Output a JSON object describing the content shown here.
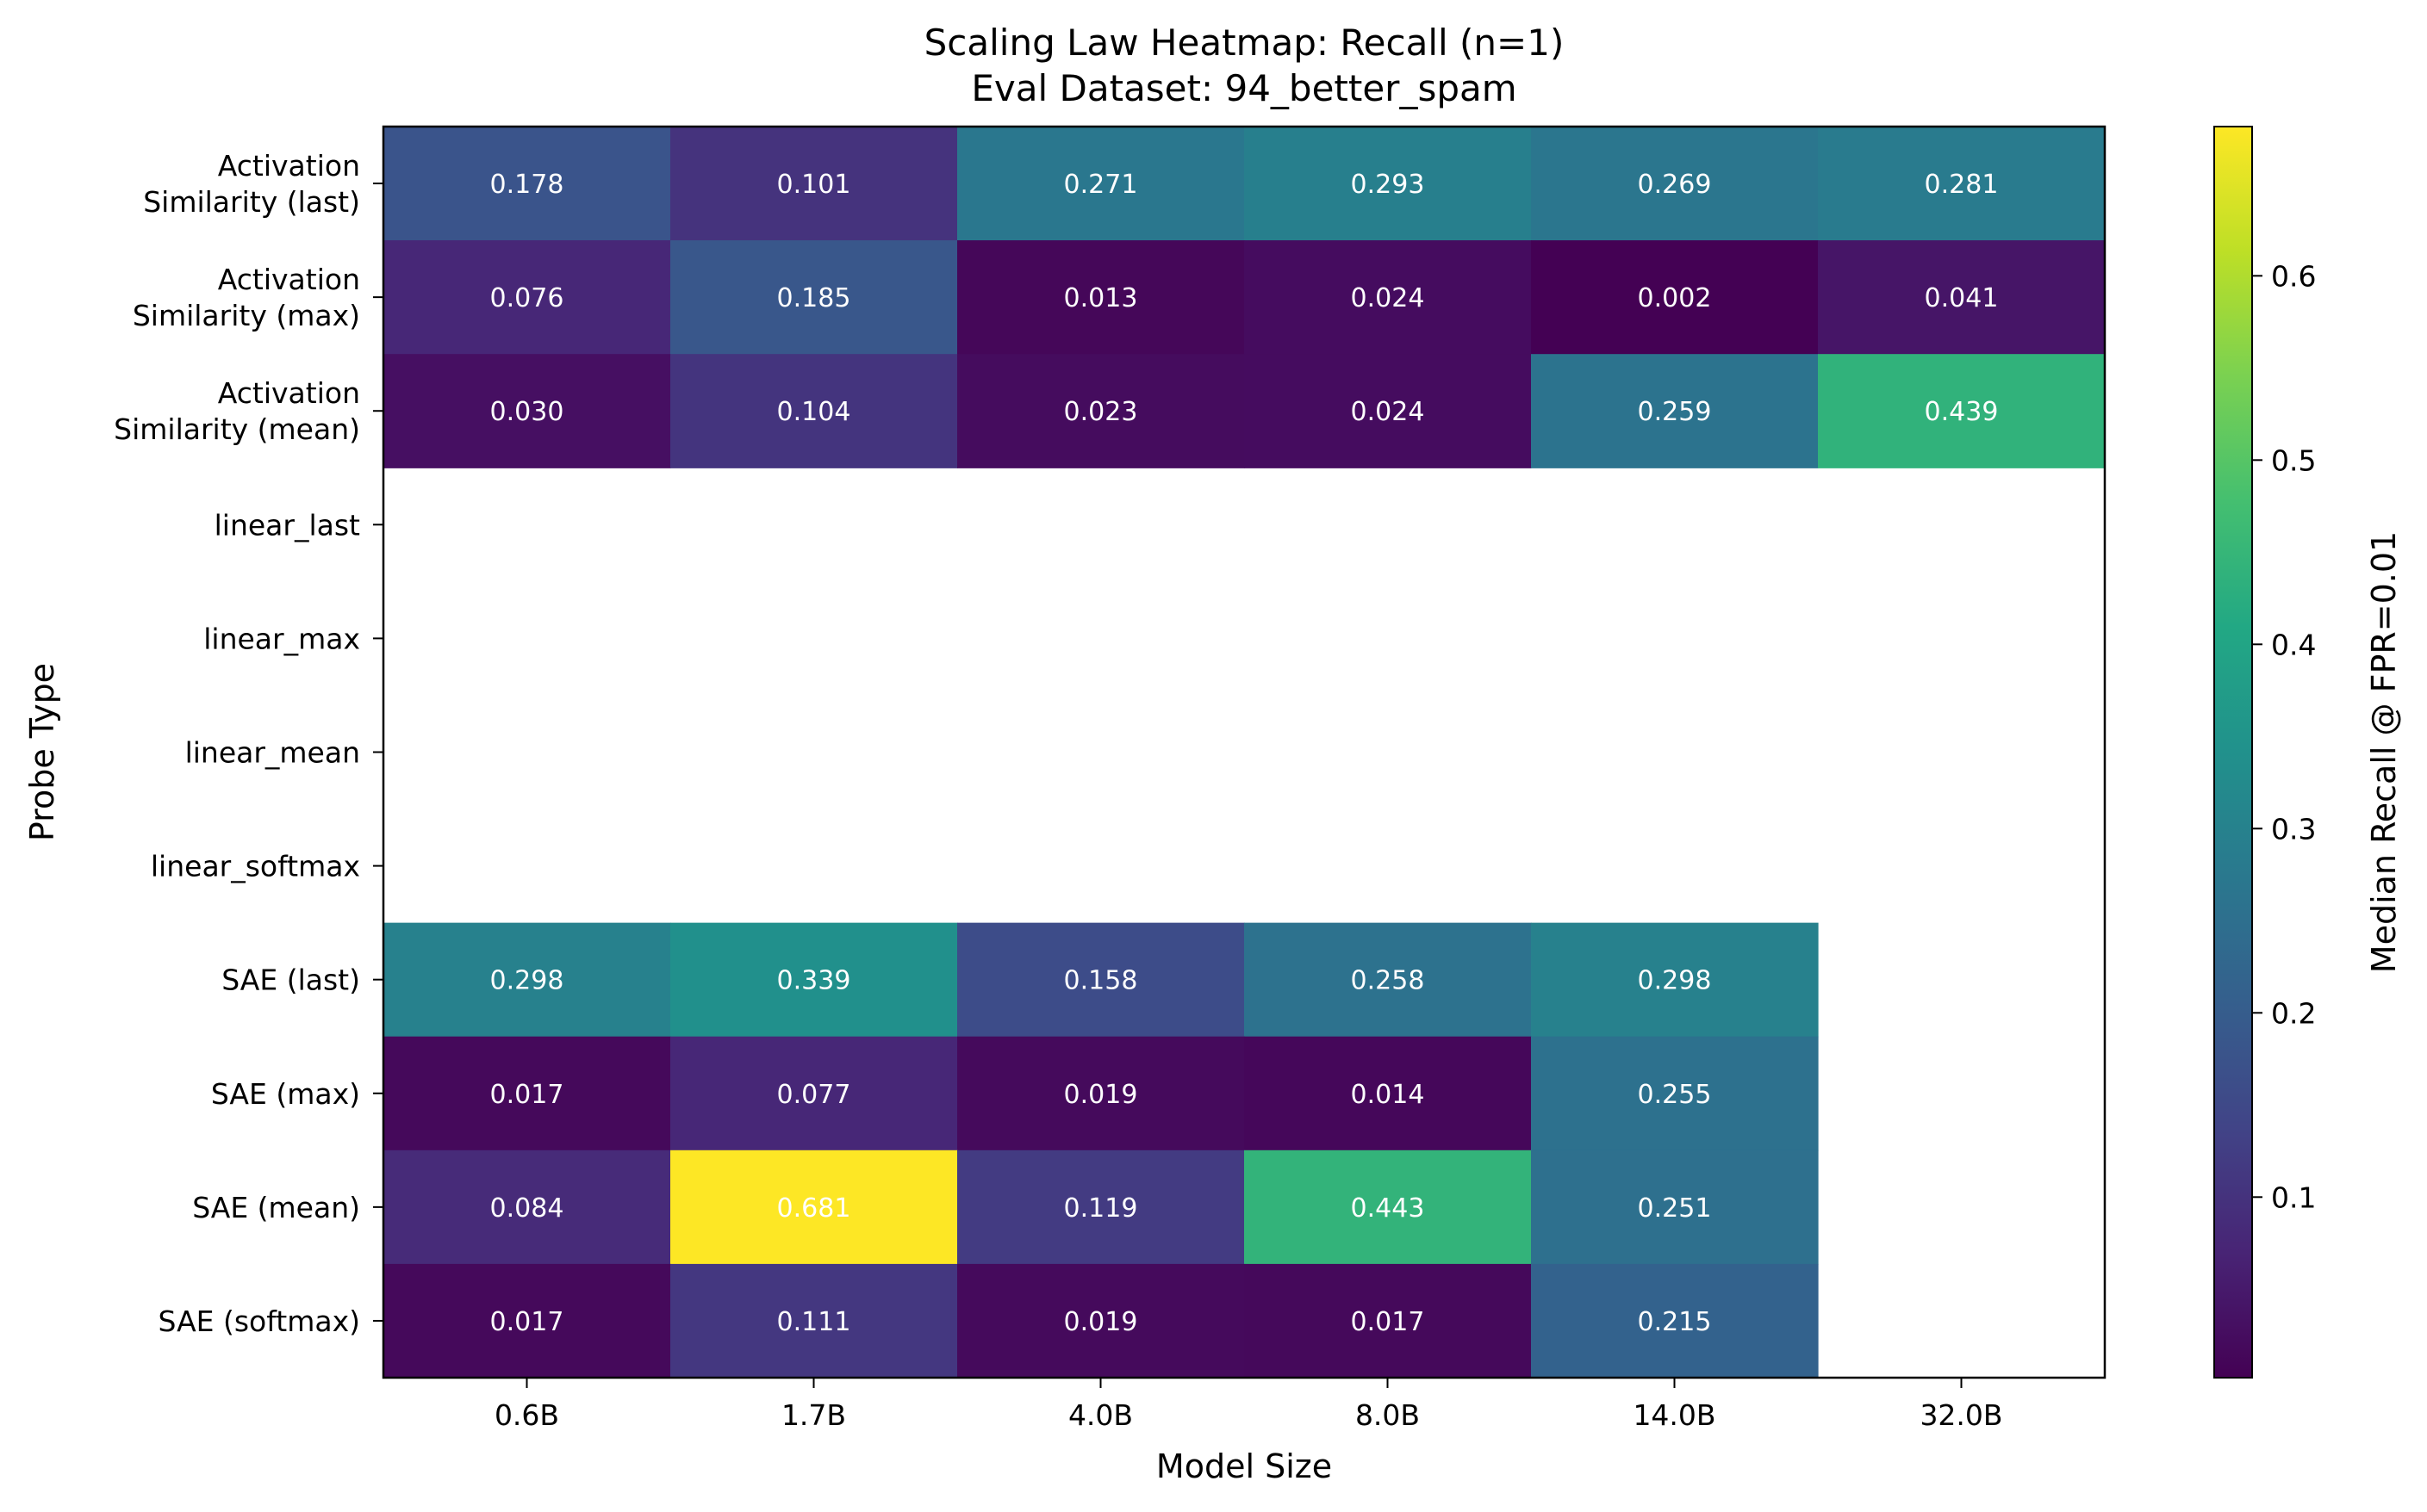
{
  "chart_data": {
    "type": "heatmap",
    "title": [
      "Scaling Law Heatmap: Recall (n=1)",
      "Eval Dataset: 94_better_spam"
    ],
    "xlabel": "Model Size",
    "ylabel": "Probe Type",
    "colorbar_label": "Median Recall @ FPR=0.01",
    "colormap": "viridis",
    "color_range": [
      0.002,
      0.681
    ],
    "colorbar_ticks": [
      "0.1",
      "0.2",
      "0.3",
      "0.4",
      "0.5",
      "0.6"
    ],
    "x_categories": [
      "0.6B",
      "1.7B",
      "4.0B",
      "8.0B",
      "14.0B",
      "32.0B"
    ],
    "y_categories": [
      [
        "Activation",
        "Similarity (last)"
      ],
      [
        "Activation",
        "Similarity (max)"
      ],
      [
        "Activation",
        "Similarity (mean)"
      ],
      [
        "linear_last"
      ],
      [
        "linear_max"
      ],
      [
        "linear_mean"
      ],
      [
        "linear_softmax"
      ],
      [
        "SAE (last)"
      ],
      [
        "SAE (max)"
      ],
      [
        "SAE (mean)"
      ],
      [
        "SAE (softmax)"
      ]
    ],
    "values": [
      [
        0.178,
        0.101,
        0.271,
        0.293,
        0.269,
        0.281
      ],
      [
        0.076,
        0.185,
        0.013,
        0.024,
        0.002,
        0.041
      ],
      [
        0.03,
        0.104,
        0.023,
        0.024,
        0.259,
        0.439
      ],
      [
        null,
        null,
        null,
        null,
        null,
        null
      ],
      [
        null,
        null,
        null,
        null,
        null,
        null
      ],
      [
        null,
        null,
        null,
        null,
        null,
        null
      ],
      [
        null,
        null,
        null,
        null,
        null,
        null
      ],
      [
        0.298,
        0.339,
        0.158,
        0.258,
        0.298,
        null
      ],
      [
        0.017,
        0.077,
        0.019,
        0.014,
        0.255,
        null
      ],
      [
        0.084,
        0.681,
        0.119,
        0.443,
        0.251,
        null
      ],
      [
        0.017,
        0.111,
        0.019,
        0.017,
        0.215,
        null
      ]
    ]
  }
}
